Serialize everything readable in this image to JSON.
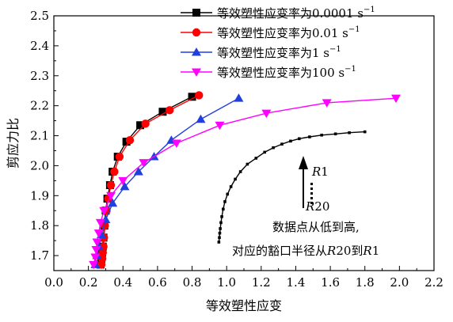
{
  "chart_data": {
    "type": "line",
    "xlabel": "等效塑性应变",
    "ylabel": "剪应力比",
    "xlim": [
      0.0,
      2.2
    ],
    "ylim": [
      1.65,
      2.5
    ],
    "xticks": [
      "0.0",
      "0.2",
      "0.4",
      "0.6",
      "0.8",
      "1.0",
      "1.2",
      "1.4",
      "1.6",
      "1.8",
      "2.0",
      "2.2"
    ],
    "yticks": [
      "1.7",
      "1.8",
      "1.9",
      "2.0",
      "2.1",
      "2.2",
      "2.3",
      "2.4",
      "2.5"
    ],
    "grid": false,
    "legend_position": "top-right",
    "series": [
      {
        "name": "等效塑性应变率为0.0001 s",
        "name_sup": "−1",
        "color": "#000000",
        "marker": "square",
        "points": [
          [
            0.27,
            1.67
          ],
          [
            0.275,
            1.69
          ],
          [
            0.28,
            1.71
          ],
          [
            0.283,
            1.73
          ],
          [
            0.287,
            1.76
          ],
          [
            0.292,
            1.8
          ],
          [
            0.3,
            1.85
          ],
          [
            0.31,
            1.89
          ],
          [
            0.325,
            1.935
          ],
          [
            0.34,
            1.98
          ],
          [
            0.37,
            2.03
          ],
          [
            0.42,
            2.08
          ],
          [
            0.5,
            2.135
          ],
          [
            0.63,
            2.18
          ],
          [
            0.8,
            2.23
          ]
        ]
      },
      {
        "name": "等效塑性应变率为0.01 s",
        "name_sup": "−1",
        "color": "#ff0000",
        "marker": "circle",
        "points": [
          [
            0.275,
            1.67
          ],
          [
            0.28,
            1.69
          ],
          [
            0.283,
            1.71
          ],
          [
            0.287,
            1.73
          ],
          [
            0.29,
            1.76
          ],
          [
            0.295,
            1.8
          ],
          [
            0.305,
            1.85
          ],
          [
            0.315,
            1.89
          ],
          [
            0.33,
            1.935
          ],
          [
            0.35,
            1.98
          ],
          [
            0.38,
            2.03
          ],
          [
            0.44,
            2.085
          ],
          [
            0.53,
            2.14
          ],
          [
            0.67,
            2.185
          ],
          [
            0.84,
            2.235
          ]
        ]
      },
      {
        "name": "等效塑性应变率为1 s",
        "name_sup": "−1",
        "color": "#1f3fdf",
        "marker": "triangle-up",
        "points": [
          [
            0.24,
            1.67
          ],
          [
            0.25,
            1.7
          ],
          [
            0.26,
            1.73
          ],
          [
            0.275,
            1.77
          ],
          [
            0.3,
            1.82
          ],
          [
            0.34,
            1.875
          ],
          [
            0.41,
            1.93
          ],
          [
            0.49,
            1.98
          ],
          [
            0.58,
            2.03
          ],
          [
            0.68,
            2.085
          ],
          [
            0.85,
            2.155
          ],
          [
            1.07,
            2.225
          ]
        ]
      },
      {
        "name": "等效塑性应变率为100 s",
        "name_sup": "−1",
        "color": "#ff00ff",
        "marker": "triangle-down",
        "points": [
          [
            0.23,
            1.67
          ],
          [
            0.24,
            1.695
          ],
          [
            0.245,
            1.72
          ],
          [
            0.25,
            1.745
          ],
          [
            0.26,
            1.775
          ],
          [
            0.27,
            1.81
          ],
          [
            0.29,
            1.85
          ],
          [
            0.33,
            1.9
          ],
          [
            0.4,
            1.95
          ],
          [
            0.52,
            2.01
          ],
          [
            0.71,
            2.075
          ],
          [
            0.96,
            2.135
          ],
          [
            1.23,
            2.175
          ],
          [
            1.58,
            2.21
          ],
          [
            1.98,
            2.225
          ]
        ]
      },
      {
        "name": "",
        "color": "#000000",
        "marker": "small-square",
        "points": [
          [
            0.955,
            1.745
          ],
          [
            0.958,
            1.76
          ],
          [
            0.96,
            1.775
          ],
          [
            0.963,
            1.79
          ],
          [
            0.967,
            1.81
          ],
          [
            0.972,
            1.83
          ],
          [
            0.98,
            1.855
          ],
          [
            0.99,
            1.88
          ],
          [
            1.005,
            1.905
          ],
          [
            1.025,
            1.93
          ],
          [
            1.05,
            1.955
          ],
          [
            1.08,
            1.98
          ],
          [
            1.12,
            2.005
          ],
          [
            1.17,
            2.025
          ],
          [
            1.22,
            2.045
          ],
          [
            1.27,
            2.06
          ],
          [
            1.32,
            2.072
          ],
          [
            1.37,
            2.082
          ],
          [
            1.42,
            2.09
          ],
          [
            1.48,
            2.096
          ],
          [
            1.55,
            2.102
          ],
          [
            1.63,
            2.106
          ],
          [
            1.71,
            2.11
          ],
          [
            1.8,
            2.113
          ]
        ]
      }
    ],
    "annotation": {
      "top_label_italic": "R",
      "top_label_num": "1",
      "bottom_label_italic": "R",
      "bottom_label_num": "20",
      "line1": "数据点从低到高,",
      "line2_pre": "对应的豁口半径从",
      "line2_r1_italic": "R",
      "line2_r1_num": "20",
      "line2_mid": "到",
      "line2_r2_italic": "R",
      "line2_r2_num": "1"
    }
  }
}
